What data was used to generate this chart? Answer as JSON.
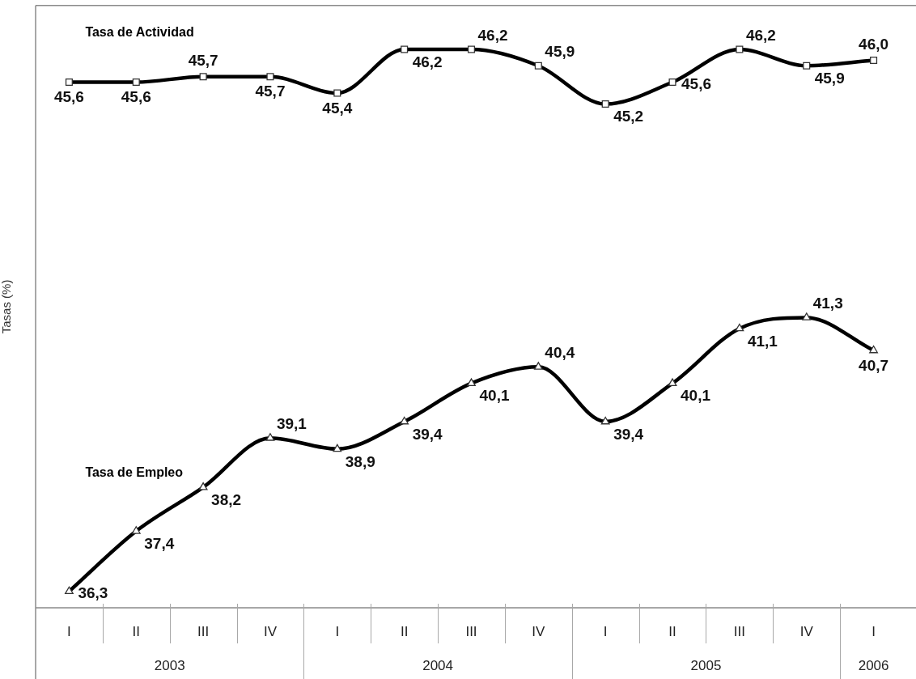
{
  "chart_data": {
    "type": "line",
    "ylabel": "Tasas (%)",
    "tick_labels": "x",
    "categories": [
      "I",
      "II",
      "III",
      "IV",
      "I",
      "II",
      "III",
      "IV",
      "I",
      "II",
      "III",
      "IV",
      "I"
    ],
    "series": [
      {
        "name": "Tasa de Actividad",
        "color": "#000000",
        "marker": "square",
        "values": [
          45.6,
          45.6,
          45.7,
          45.7,
          45.4,
          46.2,
          46.2,
          45.9,
          45.2,
          45.6,
          46.2,
          45.9,
          46.0
        ],
        "value_labels": [
          "45,6",
          "45,6",
          "45,7",
          "45,7",
          "45,4",
          "46,2",
          "46,2",
          "45,9",
          "45,2",
          "45,6",
          "46,2",
          "45,9",
          "46,0"
        ]
      },
      {
        "name": "Tasa de Empleo",
        "color": "#000000",
        "marker": "triangle",
        "values": [
          36.3,
          37.4,
          38.2,
          39.1,
          38.9,
          39.4,
          40.1,
          40.4,
          39.4,
          40.1,
          41.1,
          41.3,
          40.7
        ],
        "value_labels": [
          "36,3",
          "37,4",
          "38,2",
          "39,1",
          "38,9",
          "39,4",
          "40,1",
          "40,4",
          "39,4",
          "40,1",
          "41,1",
          "41,3",
          "40,7"
        ]
      }
    ],
    "annotations": [
      "2003",
      "2004",
      "2005",
      "2006"
    ]
  }
}
